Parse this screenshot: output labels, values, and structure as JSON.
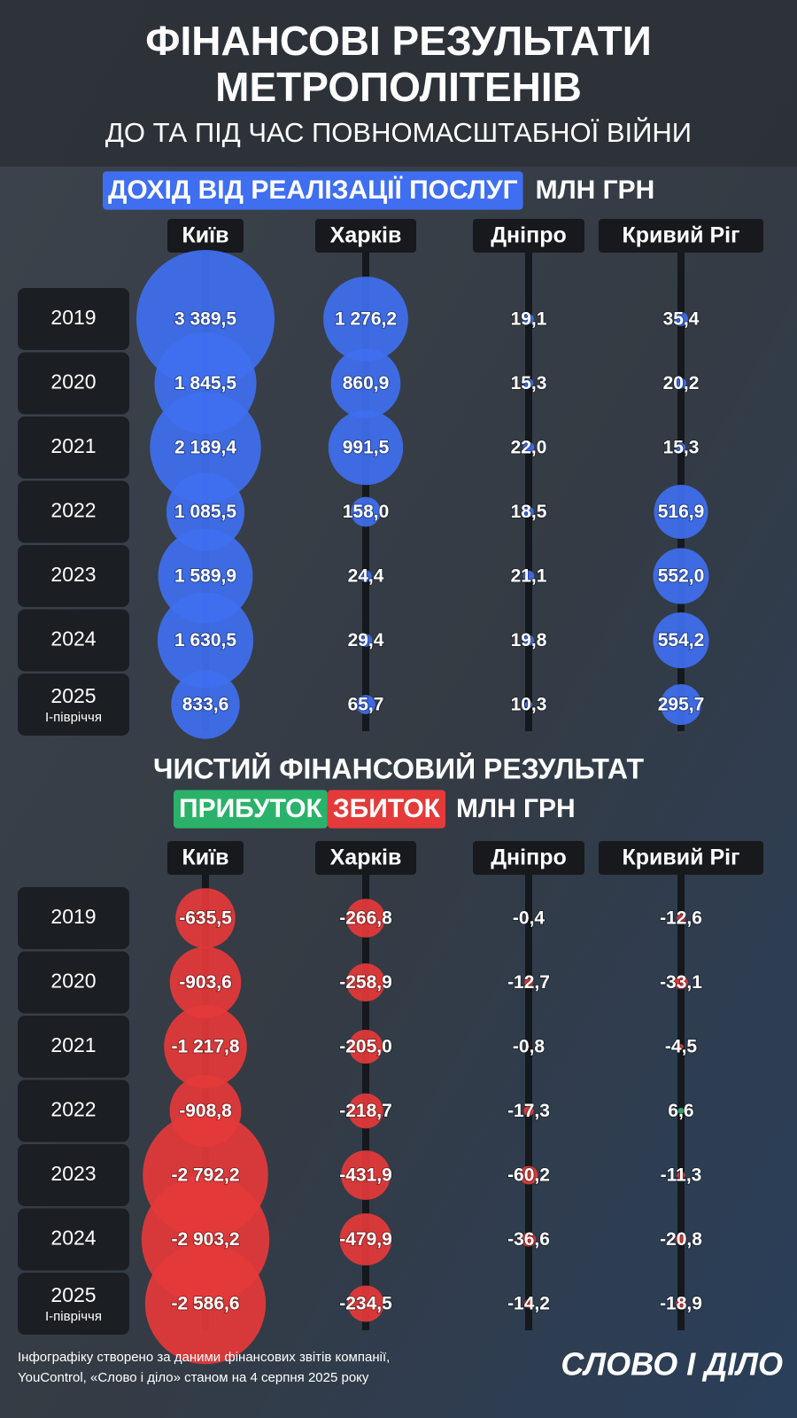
{
  "header": {
    "title_lines": [
      "ФІНАНСОВІ РЕЗУЛЬТАТИ",
      "МЕТРОПОЛІТЕНІВ"
    ],
    "subtitle": "ДО ТА ПІД ЧАС ПОВНОМАСШТАБНОЇ ВІЙНИ"
  },
  "chart_data": [
    {
      "type": "bubble",
      "title": "ДОХІД ВІД РЕАЛІЗАЦІЇ ПОСЛУГ",
      "unit": "МЛН ГРН",
      "categories": [
        "2019",
        "2020",
        "2021",
        "2022",
        "2023",
        "2024",
        "2025"
      ],
      "last_category_note": "I-півріччя",
      "series": [
        {
          "name": "Київ",
          "color": "#3f6ff0",
          "values": [
            3389.5,
            1845.5,
            2189.4,
            1085.5,
            1589.9,
            1630.5,
            833.6
          ],
          "value_labels": [
            "3 389,5",
            "1 845,5",
            "2 189,4",
            "1 085,5",
            "1 589,9",
            "1 630,5",
            "833,6"
          ]
        },
        {
          "name": "Харків",
          "color": "#3f6ff0",
          "values": [
            1276.2,
            860.9,
            991.5,
            158.0,
            24.4,
            29.4,
            65.7
          ],
          "value_labels": [
            "1 276,2",
            "860,9",
            "991,5",
            "158,0",
            "24,4",
            "29,4",
            "65,7"
          ]
        },
        {
          "name": "Дніпро",
          "color": "#3f6ff0",
          "values": [
            19.1,
            15.3,
            22.0,
            18.5,
            21.1,
            19.8,
            10.3
          ],
          "value_labels": [
            "19,1",
            "15,3",
            "22,0",
            "18,5",
            "21,1",
            "19,8",
            "10,3"
          ]
        },
        {
          "name": "Кривий Ріг",
          "color": "#3f6ff0",
          "values": [
            35.4,
            20.2,
            15.3,
            516.9,
            552.0,
            554.2,
            295.7
          ],
          "value_labels": [
            "35,4",
            "20,2",
            "15,3",
            "516,9",
            "552,0",
            "554,2",
            "295,7"
          ]
        }
      ]
    },
    {
      "type": "bubble",
      "title": "ЧИСТИЙ ФІНАНСОВИЙ РЕЗУЛЬТАТ",
      "unit": "МЛН ГРН",
      "legend": [
        {
          "label": "ПРИБУТОК",
          "color": "#2bb26a"
        },
        {
          "label": "ЗБИТОК",
          "color": "#e53a3a"
        }
      ],
      "categories": [
        "2019",
        "2020",
        "2021",
        "2022",
        "2023",
        "2024",
        "2025"
      ],
      "last_category_note": "I-півріччя",
      "series": [
        {
          "name": "Київ",
          "values": [
            -635.5,
            -903.6,
            -1217.8,
            -908.8,
            -2792.2,
            -2903.2,
            -2586.6
          ],
          "value_labels": [
            "-635,5",
            "-903,6",
            "-1 217,8",
            "-908,8",
            "-2 792,2",
            "-2 903,2",
            "-2 586,6"
          ]
        },
        {
          "name": "Харків",
          "values": [
            -266.8,
            -258.9,
            -205.0,
            -218.7,
            -431.9,
            -479.9,
            -234.5
          ],
          "value_labels": [
            "-266,8",
            "-258,9",
            "-205,0",
            "-218,7",
            "-431,9",
            "-479,9",
            "-234,5"
          ]
        },
        {
          "name": "Дніпро",
          "values": [
            -0.4,
            -12.7,
            -0.8,
            -17.3,
            -60.2,
            -36.6,
            -14.2
          ],
          "value_labels": [
            "-0,4",
            "-12,7",
            "-0,8",
            "-17,3",
            "-60,2",
            "-36,6",
            "-14,2"
          ]
        },
        {
          "name": "Кривий Ріг",
          "values": [
            -12.6,
            -33.1,
            -4.5,
            6.6,
            -11.3,
            -20.8,
            -18.9
          ],
          "value_labels": [
            "-12,6",
            "-33,1",
            "-4,5",
            "6,6",
            "-11,3",
            "-20,8",
            "-18,9"
          ]
        }
      ]
    }
  ],
  "footer": {
    "source_lines": [
      "Інфографіку створено за даними фінансових звітів компанії,",
      "YouControl, «Слово і діло» станом на 4 серпня 2025 року"
    ],
    "logo": "СЛОВО І ДІЛО"
  }
}
